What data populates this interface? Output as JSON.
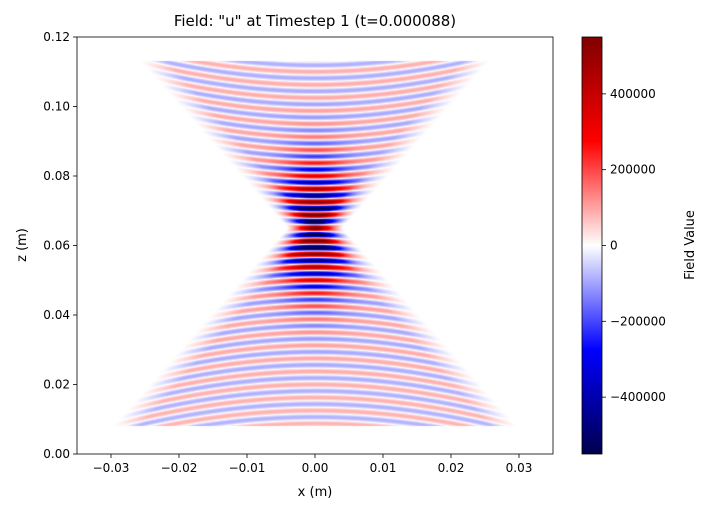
{
  "chart_data": {
    "type": "heatmap",
    "title": "Field: \"u\" at Timestep 1 (t=0.000088)",
    "xlabel": "x (m)",
    "ylabel": "z (m)",
    "xlim": [
      -0.035,
      0.035
    ],
    "ylim": [
      0.0,
      0.12
    ],
    "x_ticks": [
      -0.03,
      -0.02,
      -0.01,
      0.0,
      0.01,
      0.02,
      0.03
    ],
    "x_tick_labels": [
      "−0.03",
      "−0.02",
      "−0.01",
      "0.00",
      "0.01",
      "0.02",
      "0.03"
    ],
    "y_ticks": [
      0.0,
      0.02,
      0.04,
      0.06,
      0.08,
      0.1,
      0.12
    ],
    "y_tick_labels": [
      "0.00",
      "0.02",
      "0.04",
      "0.06",
      "0.08",
      "0.10",
      "0.12"
    ],
    "colorbar": {
      "label": "Field Value",
      "colormap": "seismic",
      "range": [
        -550000,
        550000
      ],
      "ticks": [
        400000,
        200000,
        0,
        -200000,
        -400000
      ],
      "tick_labels": [
        "400000",
        "200000",
        "0",
        "−200000",
        "−400000"
      ],
      "colors": [
        "#00004c",
        "#0000ff",
        "#ffffff",
        "#ff0000",
        "#800000"
      ]
    },
    "field": {
      "description_values": "wave field u over (x, z)",
      "peak_location": [
        0.0,
        0.065
      ],
      "peak_amplitude": 550000,
      "wavelength_z": 0.00375
    }
  }
}
